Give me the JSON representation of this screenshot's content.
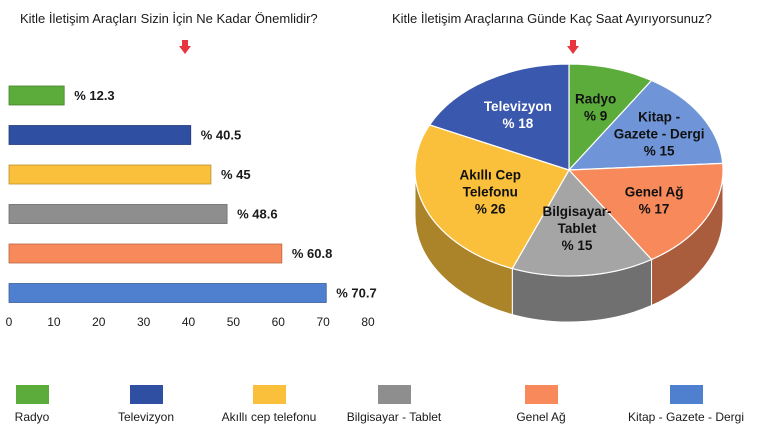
{
  "chart_data": [
    {
      "type": "bar",
      "orientation": "horizontal",
      "title": "Kitle İletişim Araçları Sizin İçin Ne Kadar Önemlidir?",
      "categories": [
        "Radyo",
        "Televizyon",
        "Akıllı cep telefonu",
        "Bilgisayar - Tablet",
        "Genel Ağ",
        "Kitap - Gazete - Dergi"
      ],
      "values": [
        12.3,
        40.5,
        45,
        48.6,
        60.8,
        70.7
      ],
      "value_labels": [
        "% 12.3",
        "% 40.5",
        "% 45",
        "% 48.6",
        "% 60.8",
        "% 70.7"
      ],
      "xlim": [
        0,
        80
      ],
      "x_ticks": [
        "0",
        "10",
        "20",
        "30",
        "40",
        "50",
        "60",
        "70",
        "80"
      ],
      "grid": false,
      "colors": [
        "#5bac3a",
        "#2f4fa3",
        "#fbc03b",
        "#8e8e8e",
        "#f8895a",
        "#4f7fcf"
      ]
    },
    {
      "type": "pie",
      "style": "3d",
      "title": "Kitle İletişim Araçlarına Günde Kaç Saat Ayırıyorsunuz?",
      "slices": [
        {
          "label_lines": [
            "Radyo",
            "% 9"
          ],
          "value": 9,
          "color": "#5bac3a"
        },
        {
          "label_lines": [
            "Kitap -",
            "Gazete - Dergi",
            "% 15"
          ],
          "value": 15,
          "color": "#6f95d8"
        },
        {
          "label_lines": [
            "Genel Ağ",
            "% 17"
          ],
          "value": 17,
          "color": "#f8895a"
        },
        {
          "label_lines": [
            "Bilgisayar-",
            "Tablet",
            "% 15"
          ],
          "value": 15,
          "color": "#a5a5a5"
        },
        {
          "label_lines": [
            "Akıllı Cep",
            "Telefonu",
            "% 26"
          ],
          "value": 26,
          "color": "#fbc03b"
        },
        {
          "label_lines": [
            "Televizyon",
            "% 18"
          ],
          "value": 18,
          "color": "#3a58ad"
        }
      ]
    }
  ],
  "legend": {
    "placement": "bottom",
    "items": [
      {
        "label": "Radyo",
        "color": "#5bac3a"
      },
      {
        "label": "Televizyon",
        "color": "#2f4fa3"
      },
      {
        "label": "Akıllı cep telefonu",
        "color": "#fbc03b"
      },
      {
        "label": "Bilgisayar - Tablet",
        "color": "#8e8e8e"
      },
      {
        "label": "Genel Ağ",
        "color": "#f8895a"
      },
      {
        "label": "Kitap - Gazete - Dergi",
        "color": "#4f7fcf"
      }
    ]
  },
  "arrow_color": "#e8343c",
  "arrows": [
    "down-arrow-icon",
    "down-arrow-icon"
  ]
}
